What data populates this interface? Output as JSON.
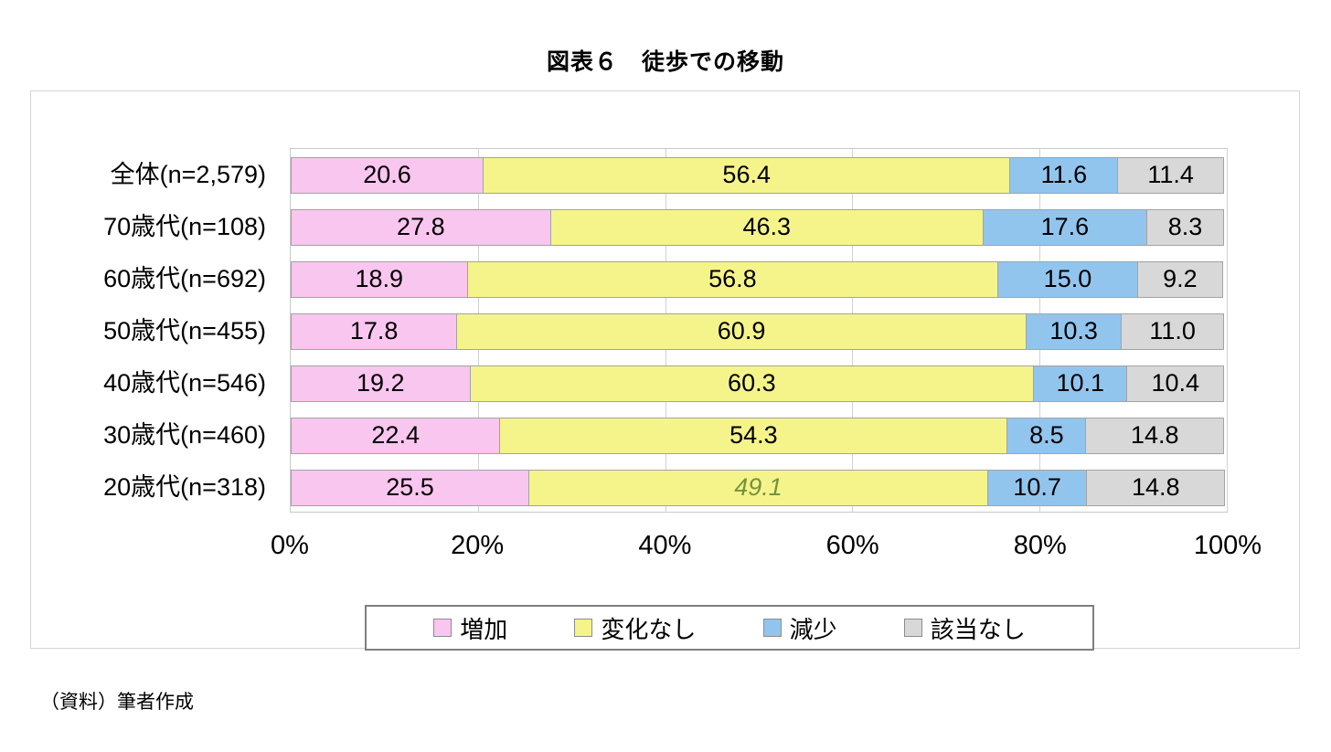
{
  "title": "図表６　徒歩での移動",
  "footer": "（資料）筆者作成",
  "chart_data": {
    "type": "bar",
    "orientation": "horizontal",
    "stacked": true,
    "categories": [
      "全体(n=2,579)",
      "70歳代(n=108)",
      "60歳代(n=692)",
      "50歳代(n=455)",
      "40歳代(n=546)",
      "30歳代(n=460)",
      "20歳代(n=318)"
    ],
    "series": [
      {
        "name": "増加",
        "color": "#f9c6ef",
        "values": [
          20.6,
          27.8,
          18.9,
          17.8,
          19.2,
          22.4,
          25.5
        ],
        "labels": [
          "20.6",
          "27.8",
          "18.9",
          "17.8",
          "19.2",
          "22.4",
          "25.5"
        ]
      },
      {
        "name": "変化なし",
        "color": "#f5f48b",
        "values": [
          56.4,
          46.3,
          56.8,
          60.9,
          60.3,
          54.3,
          49.1
        ],
        "labels": [
          "56.4",
          "46.3",
          "56.8",
          "60.9",
          "60.3",
          "54.3",
          "49.1"
        ]
      },
      {
        "name": "減少",
        "color": "#92c5ee",
        "values": [
          11.6,
          17.6,
          15.0,
          10.3,
          10.1,
          8.5,
          10.7
        ],
        "labels": [
          "11.6",
          "17.6",
          "15.0",
          "10.3",
          "10.1",
          "8.5",
          "10.7"
        ]
      },
      {
        "name": "該当なし",
        "color": "#d8d8d8",
        "values": [
          11.4,
          8.3,
          9.2,
          11.0,
          10.4,
          14.8,
          14.8
        ],
        "labels": [
          "11.4",
          "8.3",
          "9.2",
          "11.0",
          "10.4",
          "14.8",
          "14.8"
        ]
      }
    ],
    "x_ticks": [
      {
        "label": "0%",
        "value": 0
      },
      {
        "label": "20%",
        "value": 20
      },
      {
        "label": "40%",
        "value": 40
      },
      {
        "label": "60%",
        "value": 60
      },
      {
        "label": "80%",
        "value": 80
      },
      {
        "label": "100%",
        "value": 100
      }
    ],
    "xlim": [
      0,
      100
    ],
    "grid": true,
    "legend_position": "bottom",
    "special_labels": [
      {
        "row": 6,
        "series": 1,
        "italic": true,
        "color": "#76923c"
      }
    ]
  }
}
